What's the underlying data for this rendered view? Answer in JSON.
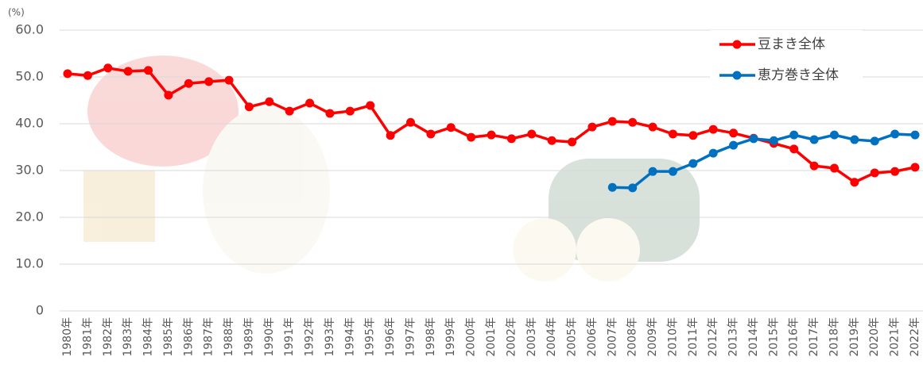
{
  "chart_data": {
    "type": "line",
    "y_label": "(%)",
    "categories": [
      "1980年",
      "1981年",
      "1982年",
      "1983年",
      "1984年",
      "1985年",
      "1986年",
      "1987年",
      "1988年",
      "1989年",
      "1990年",
      "1991年",
      "1992年",
      "1993年",
      "1994年",
      "1995年",
      "1996年",
      "1997年",
      "1998年",
      "1999年",
      "2000年",
      "2001年",
      "2002年",
      "2003年",
      "2004年",
      "2005年",
      "2006年",
      "2007年",
      "2008年",
      "2009年",
      "2010年",
      "2011年",
      "2012年",
      "2013年",
      "2014年",
      "2015年",
      "2016年",
      "2017年",
      "2018年",
      "2019年",
      "2020年",
      "2021年",
      "2022年"
    ],
    "series": [
      {
        "name": "豆まき全体",
        "color": "#ff0000",
        "values": [
          50.7,
          50.3,
          51.9,
          51.2,
          51.4,
          46.1,
          48.6,
          49.0,
          49.3,
          43.6,
          44.7,
          42.7,
          44.4,
          42.2,
          42.7,
          43.9,
          37.5,
          40.3,
          37.8,
          39.2,
          37.1,
          37.6,
          36.8,
          37.8,
          36.4,
          36.1,
          39.3,
          40.5,
          40.3,
          39.3,
          37.8,
          37.5,
          38.8,
          38.0,
          36.9,
          35.8,
          34.6,
          31.0,
          30.5,
          27.5,
          29.5,
          29.8,
          30.7
        ]
      },
      {
        "name": "恵方巻き全体",
        "color": "#0070c0",
        "values": [
          null,
          null,
          null,
          null,
          null,
          null,
          null,
          null,
          null,
          null,
          null,
          null,
          null,
          null,
          null,
          null,
          null,
          null,
          null,
          null,
          null,
          null,
          null,
          null,
          null,
          null,
          null,
          26.4,
          26.3,
          29.8,
          29.8,
          31.5,
          33.7,
          35.4,
          36.8,
          36.4,
          37.6,
          36.6,
          37.6,
          36.6,
          36.3,
          37.8,
          37.6
        ]
      }
    ],
    "ylim": [
      0,
      60
    ],
    "yticks": [
      0,
      {
        "value": 10,
        "label": "10.0"
      },
      {
        "value": 20,
        "label": "20.0"
      },
      {
        "value": 30,
        "label": "30.0"
      },
      {
        "value": 40,
        "label": "40.0"
      },
      {
        "value": 50,
        "label": "50.0"
      },
      {
        "value": 60,
        "label": "60.0"
      }
    ],
    "grid": true,
    "legend": "top-right"
  }
}
